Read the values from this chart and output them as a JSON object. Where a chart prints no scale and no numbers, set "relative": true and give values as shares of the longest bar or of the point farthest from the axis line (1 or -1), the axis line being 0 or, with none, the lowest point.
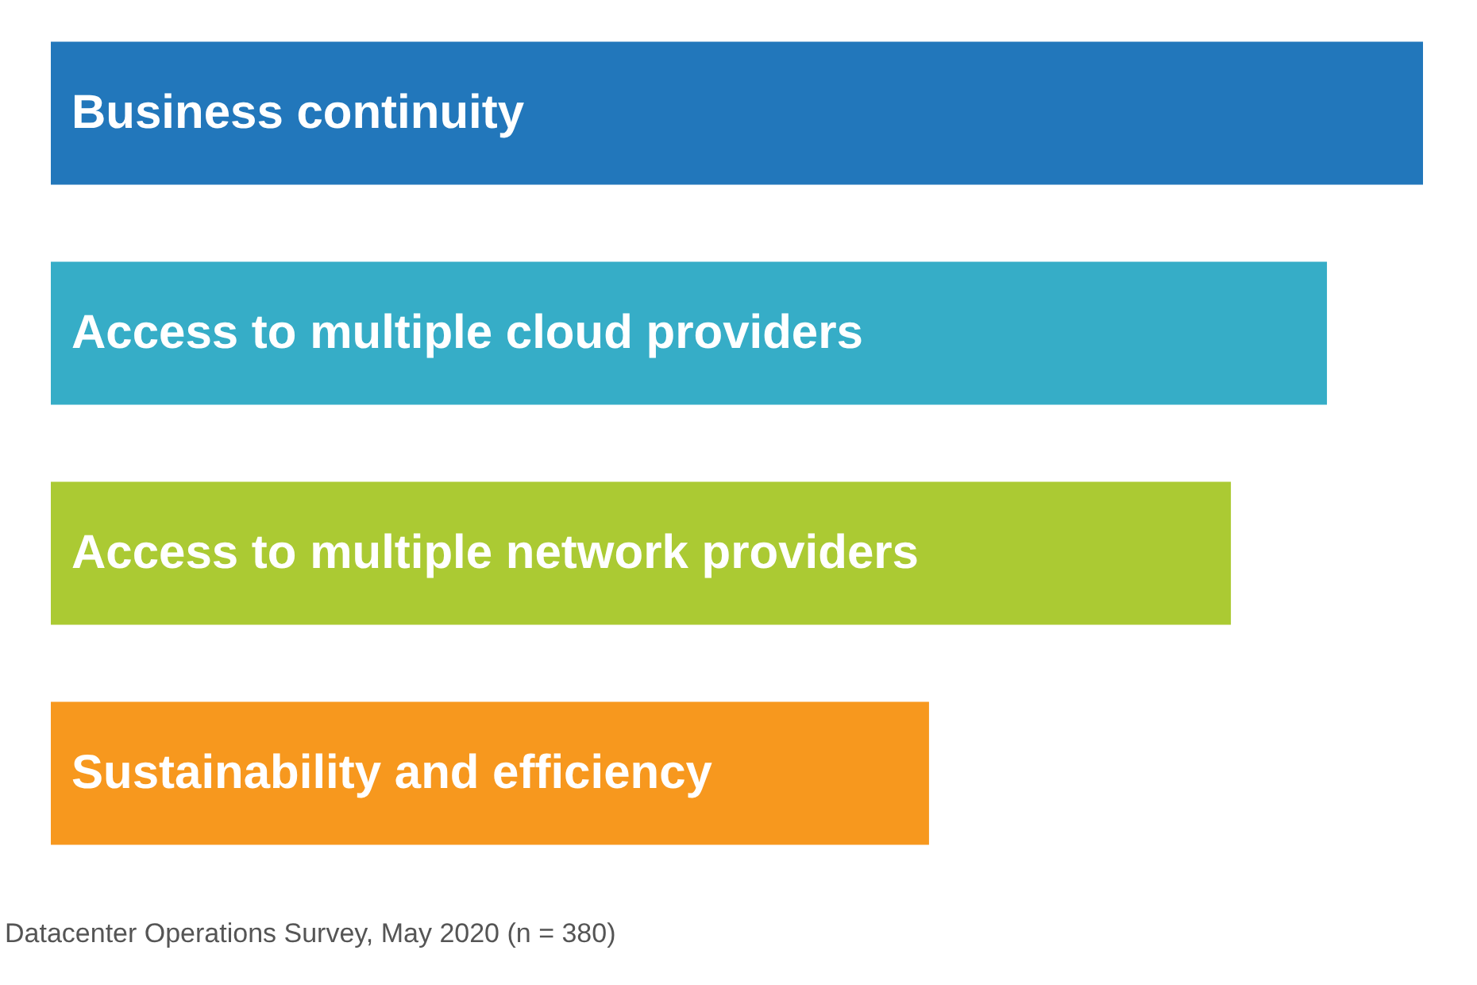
{
  "chart_data": {
    "type": "bar",
    "orientation": "horizontal",
    "relative": true,
    "categories": [
      "Business continuity",
      "Access to multiple cloud providers",
      "Access to multiple network providers",
      "Sustainability and efficiency"
    ],
    "values": [
      1,
      0.93,
      0.86,
      0.64
    ],
    "colors": [
      "#2277bb",
      "#36adc7",
      "#abca33",
      "#f7981e"
    ],
    "annotations": [
      "Datacenter Operations Survey, May 2020 (n = 380)"
    ]
  }
}
